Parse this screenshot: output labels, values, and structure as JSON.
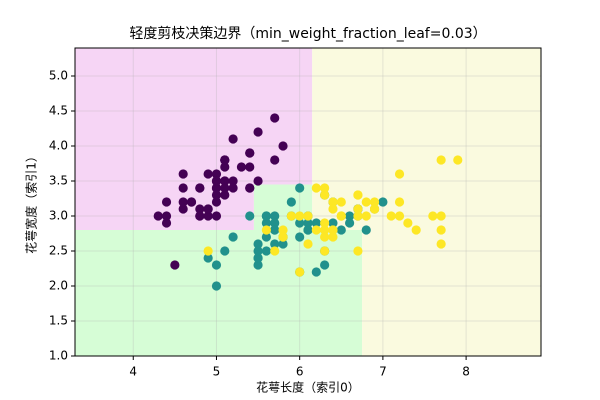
{
  "chart_data": {
    "type": "scatter",
    "title": "轻度剪枝决策边界（min_weight_fraction_leaf=0.03）",
    "xlabel": "花萼长度（索引0）",
    "ylabel": "花萼宽度（索引1）",
    "xlim": [
      3.3,
      8.9
    ],
    "ylim": [
      1.0,
      5.4
    ],
    "xticks": [
      4,
      5,
      6,
      7,
      8
    ],
    "yticks": [
      {
        "value": 1.0,
        "label": "1.0"
      },
      {
        "value": 1.5,
        "label": "1.5"
      },
      {
        "value": 2.0,
        "label": "2.0"
      },
      {
        "value": 2.5,
        "label": "2.5"
      },
      {
        "value": 3.0,
        "label": "3.0"
      },
      {
        "value": 3.5,
        "label": "3.5"
      },
      {
        "value": 4.0,
        "label": "4.0"
      },
      {
        "value": 4.5,
        "label": "4.5"
      },
      {
        "value": 5.0,
        "label": "5.0"
      }
    ],
    "grid": true,
    "regions": [
      {
        "x": [
          3.3,
          6.15
        ],
        "y": [
          3.45,
          5.4
        ],
        "color": "#f6d5f5"
      },
      {
        "x": [
          3.3,
          5.45
        ],
        "y": [
          2.8,
          3.45
        ],
        "color": "#f6d5f5"
      },
      {
        "x": [
          3.3,
          6.75
        ],
        "y": [
          1.0,
          2.8
        ],
        "color": "#d6fdd6"
      },
      {
        "x": [
          5.45,
          6.15
        ],
        "y": [
          2.8,
          3.45
        ],
        "color": "#d6fdd6"
      },
      {
        "x": [
          6.15,
          8.9
        ],
        "y": [
          2.8,
          5.4
        ],
        "color": "#fafadf"
      },
      {
        "x": [
          6.75,
          8.9
        ],
        "y": [
          1.0,
          2.8
        ],
        "color": "#fafadf"
      }
    ],
    "series": [
      {
        "color": "#440154",
        "x": [
          5.1,
          4.9,
          4.7,
          4.6,
          5.0,
          5.4,
          4.6,
          5.0,
          4.4,
          4.9,
          5.4,
          4.8,
          4.8,
          4.3,
          5.8,
          5.7,
          5.4,
          5.1,
          5.7,
          5.1,
          5.4,
          5.1,
          4.6,
          5.1,
          4.8,
          5.0,
          5.0,
          5.2,
          5.2,
          4.7,
          4.8,
          5.4,
          5.2,
          5.5,
          4.9,
          5.0,
          5.5,
          4.9,
          4.4,
          5.1,
          5.0,
          4.5,
          4.4,
          5.0,
          5.1,
          4.8,
          5.1,
          4.6,
          5.3,
          5.0
        ],
        "y": [
          3.5,
          3.0,
          3.2,
          3.1,
          3.6,
          3.9,
          3.4,
          3.4,
          2.9,
          3.1,
          3.7,
          3.4,
          3.0,
          3.0,
          4.0,
          4.4,
          3.9,
          3.5,
          3.8,
          3.8,
          3.4,
          3.7,
          3.6,
          3.3,
          3.4,
          3.0,
          3.4,
          3.5,
          3.4,
          3.2,
          3.1,
          3.4,
          4.1,
          4.2,
          3.1,
          3.2,
          3.5,
          3.6,
          3.0,
          3.4,
          3.5,
          2.3,
          3.2,
          3.5,
          3.8,
          3.0,
          3.8,
          3.2,
          3.7,
          3.3
        ]
      },
      {
        "color": "#21918c",
        "x": [
          7.0,
          6.4,
          6.9,
          5.5,
          6.5,
          5.7,
          6.3,
          4.9,
          6.6,
          5.2,
          5.0,
          5.9,
          6.0,
          6.1,
          5.6,
          6.7,
          5.6,
          5.8,
          6.2,
          5.6,
          5.9,
          6.1,
          6.3,
          6.1,
          6.4,
          6.6,
          6.8,
          6.7,
          6.0,
          5.7,
          5.5,
          5.5,
          5.8,
          6.0,
          5.4,
          6.0,
          6.7,
          6.3,
          5.6,
          5.5,
          5.5,
          6.1,
          5.8,
          5.0,
          5.6,
          5.7,
          5.7,
          6.2,
          5.1,
          5.7
        ],
        "y": [
          3.2,
          3.2,
          3.1,
          2.3,
          2.8,
          2.8,
          3.3,
          2.4,
          2.9,
          2.7,
          2.0,
          3.0,
          2.2,
          2.9,
          2.9,
          3.1,
          3.0,
          2.7,
          2.2,
          2.5,
          3.2,
          2.8,
          2.5,
          2.8,
          2.9,
          3.0,
          2.8,
          3.0,
          2.9,
          2.6,
          2.4,
          2.4,
          2.7,
          2.7,
          3.0,
          3.4,
          3.1,
          2.3,
          3.0,
          2.5,
          2.6,
          3.0,
          2.6,
          2.3,
          2.7,
          3.0,
          2.9,
          2.9,
          2.5,
          2.8
        ]
      },
      {
        "color": "#fde725",
        "x": [
          6.3,
          5.8,
          7.1,
          6.3,
          6.5,
          7.6,
          4.9,
          7.3,
          6.7,
          7.2,
          6.5,
          6.4,
          6.8,
          5.7,
          5.8,
          6.4,
          6.5,
          7.7,
          7.7,
          6.0,
          6.9,
          5.6,
          7.7,
          6.3,
          6.7,
          7.2,
          6.2,
          6.1,
          6.4,
          7.2,
          7.4,
          7.9,
          6.4,
          6.3,
          6.1,
          7.7,
          6.3,
          6.4,
          6.0,
          6.9,
          6.7,
          6.9,
          5.8,
          6.8,
          6.7,
          6.7,
          6.3,
          6.5,
          6.2,
          5.9
        ],
        "y": [
          3.3,
          2.7,
          3.0,
          2.9,
          3.0,
          3.0,
          2.5,
          2.9,
          2.5,
          3.6,
          3.2,
          2.7,
          3.0,
          2.5,
          2.8,
          3.2,
          3.0,
          3.8,
          2.6,
          2.2,
          3.2,
          2.8,
          2.8,
          2.7,
          3.3,
          3.2,
          2.8,
          3.0,
          2.8,
          3.0,
          2.8,
          3.8,
          2.8,
          2.8,
          2.6,
          3.0,
          3.4,
          3.1,
          3.0,
          3.1,
          3.1,
          3.1,
          2.7,
          3.2,
          3.3,
          3.0,
          2.5,
          3.0,
          3.4,
          3.0
        ]
      }
    ]
  }
}
